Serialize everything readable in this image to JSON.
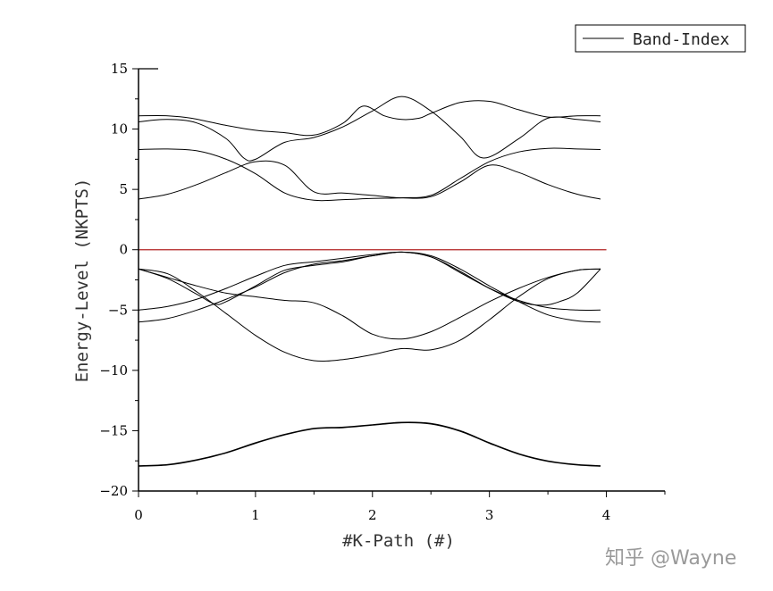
{
  "chart_data": {
    "type": "line",
    "title": "",
    "xlabel": "#K-Path (#)",
    "ylabel": "Energy-Level (NKPTS)",
    "xlim": [
      0,
      4.5
    ],
    "ylim": [
      -20,
      15
    ],
    "x_ticks": [
      "0",
      "1",
      "2",
      "3",
      "4"
    ],
    "y_ticks": [
      "15",
      "10",
      "5",
      "0",
      "−5",
      "−10",
      "−15",
      "−20"
    ],
    "grid": false,
    "legend": {
      "position": "top-right",
      "entries": [
        "Band-Index"
      ]
    },
    "fermi_level": {
      "y": 0,
      "color": "#b22222"
    },
    "line_color": "#000000",
    "series": [
      {
        "x": [
          0,
          0.25,
          0.5,
          0.75,
          1.0,
          1.25,
          1.5,
          1.75,
          2.0,
          2.25,
          2.5,
          2.75,
          3.0,
          3.25,
          3.5,
          3.75,
          3.95
        ],
        "y": [
          -17.9,
          -17.8,
          -17.4,
          -16.8,
          -16.0,
          -15.3,
          -14.8,
          -14.7,
          -14.5,
          -14.3,
          -14.4,
          -15.0,
          -16.0,
          -16.9,
          -17.5,
          -17.8,
          -17.9
        ]
      },
      {
        "x": [
          0,
          0.25,
          0.5,
          0.75,
          1.0,
          1.25,
          1.5,
          1.75,
          2.0,
          2.25,
          2.5,
          2.75,
          3.0,
          3.25,
          3.5,
          3.75,
          3.95
        ],
        "y": [
          -17.95,
          -17.85,
          -17.45,
          -16.85,
          -16.05,
          -15.35,
          -14.85,
          -14.75,
          -14.55,
          -14.35,
          -14.45,
          -15.05,
          -16.05,
          -16.95,
          -17.55,
          -17.85,
          -17.95
        ]
      },
      {
        "x": [
          0,
          0.25,
          0.5,
          0.75,
          1.0,
          1.25,
          1.5,
          1.75,
          2.0,
          2.25,
          2.5,
          2.75,
          3.0,
          3.25,
          3.5,
          3.75,
          3.95
        ],
        "y": [
          -1.6,
          -2.0,
          -3.5,
          -5.3,
          -7.1,
          -8.5,
          -9.2,
          -9.1,
          -8.7,
          -8.2,
          -8.3,
          -7.5,
          -5.8,
          -3.9,
          -2.4,
          -1.7,
          -1.6
        ]
      },
      {
        "x": [
          0,
          0.25,
          0.5,
          0.75,
          1.0,
          1.25,
          1.5,
          1.75,
          2.0,
          2.25,
          2.5,
          2.75,
          3.0,
          3.25,
          3.5,
          3.75,
          3.95
        ],
        "y": [
          -1.6,
          -2.3,
          -3.0,
          -3.6,
          -3.9,
          -4.2,
          -4.4,
          -5.5,
          -7.0,
          -7.4,
          -6.8,
          -5.6,
          -4.3,
          -3.2,
          -2.3,
          -1.7,
          -1.6
        ]
      },
      {
        "x": [
          0,
          0.25,
          0.5,
          0.65,
          0.75,
          1.0,
          1.25,
          1.5,
          1.75,
          2.0,
          2.25,
          2.5,
          2.75,
          3.0,
          3.25,
          3.45,
          3.6,
          3.75,
          3.95
        ],
        "y": [
          -1.6,
          -2.4,
          -3.7,
          -4.5,
          -4.3,
          -3.0,
          -1.7,
          -1.3,
          -1.0,
          -0.5,
          -0.2,
          -0.6,
          -1.8,
          -3.2,
          -4.3,
          -4.6,
          -4.3,
          -3.6,
          -1.6
        ]
      },
      {
        "x": [
          0,
          0.25,
          0.5,
          0.75,
          1.0,
          1.25,
          1.5,
          1.75,
          2.0,
          2.25,
          2.5,
          2.75,
          3.0,
          3.25,
          3.5,
          3.75,
          3.95
        ],
        "y": [
          -5.0,
          -4.7,
          -4.1,
          -3.2,
          -2.2,
          -1.3,
          -1.0,
          -0.7,
          -0.4,
          -0.2,
          -0.6,
          -1.9,
          -3.2,
          -4.2,
          -4.8,
          -5.0,
          -5.0
        ]
      },
      {
        "x": [
          0,
          0.25,
          0.5,
          0.75,
          1.0,
          1.25,
          1.5,
          1.75,
          2.0,
          2.25,
          2.5,
          2.75,
          3.0,
          3.25,
          3.5,
          3.75,
          3.95
        ],
        "y": [
          -6.0,
          -5.7,
          -5.0,
          -4.1,
          -3.1,
          -1.9,
          -1.2,
          -0.9,
          -0.5,
          -0.2,
          -0.5,
          -1.6,
          -3.0,
          -4.3,
          -5.4,
          -5.9,
          -6.0
        ]
      },
      {
        "x": [
          0,
          0.25,
          0.5,
          0.75,
          1.0,
          1.25,
          1.5,
          1.75,
          2.0,
          2.25,
          2.5,
          2.75,
          3.0,
          3.25,
          3.5,
          3.75,
          3.95
        ],
        "y": [
          4.2,
          4.6,
          5.4,
          6.4,
          7.3,
          7.0,
          4.8,
          4.7,
          4.5,
          4.3,
          4.4,
          5.6,
          7.0,
          6.4,
          5.4,
          4.6,
          4.2
        ]
      },
      {
        "x": [
          0,
          0.25,
          0.5,
          0.75,
          1.0,
          1.25,
          1.5,
          1.75,
          2.0,
          2.25,
          2.5,
          2.75,
          3.0,
          3.25,
          3.5,
          3.75,
          3.95
        ],
        "y": [
          8.3,
          8.35,
          8.2,
          7.5,
          6.3,
          4.7,
          4.1,
          4.15,
          4.25,
          4.3,
          4.5,
          5.9,
          7.3,
          8.1,
          8.4,
          8.35,
          8.3
        ]
      },
      {
        "x": [
          0,
          0.25,
          0.5,
          0.75,
          0.9,
          1.0,
          1.25,
          1.5,
          1.75,
          2.0,
          2.25,
          2.5,
          2.75,
          2.95,
          3.25,
          3.5,
          3.75,
          3.95
        ],
        "y": [
          10.6,
          10.8,
          10.5,
          9.2,
          7.6,
          7.5,
          8.9,
          9.3,
          10.2,
          11.5,
          12.7,
          11.5,
          9.4,
          7.6,
          9.2,
          10.9,
          10.8,
          10.6
        ]
      },
      {
        "x": [
          0,
          0.25,
          0.45,
          0.75,
          1.0,
          1.25,
          1.5,
          1.75,
          1.92,
          2.1,
          2.25,
          2.4,
          2.5,
          2.75,
          3.0,
          3.25,
          3.5,
          3.75,
          3.95
        ],
        "y": [
          11.1,
          11.1,
          10.9,
          10.3,
          9.9,
          9.7,
          9.5,
          10.5,
          11.9,
          11.1,
          10.8,
          10.9,
          11.3,
          12.2,
          12.3,
          11.6,
          11.0,
          11.1,
          11.1
        ]
      }
    ]
  },
  "watermark": "知乎 @Wayne"
}
